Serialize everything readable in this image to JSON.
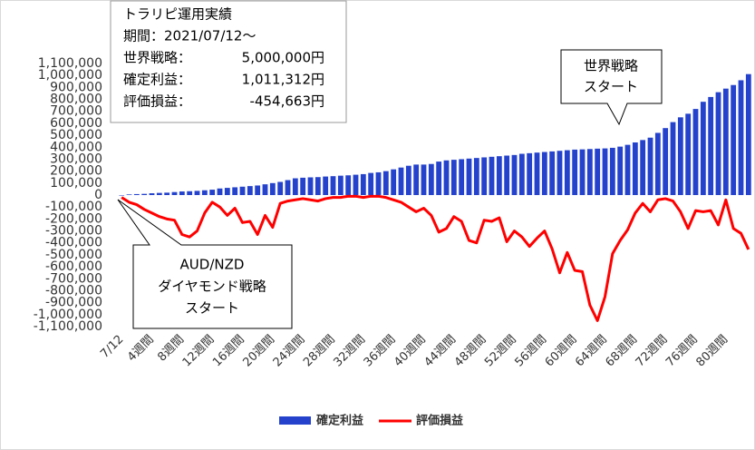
{
  "chart_data": {
    "type": "bar_line",
    "categories": [
      "7/12",
      null,
      null,
      null,
      "4週間",
      null,
      null,
      null,
      "8週間",
      null,
      null,
      null,
      "12週間",
      null,
      null,
      null,
      "16週間",
      null,
      null,
      null,
      "20週間",
      null,
      null,
      null,
      "24週間",
      null,
      null,
      null,
      "28週間",
      null,
      null,
      null,
      "32週間",
      null,
      null,
      null,
      "36週間",
      null,
      null,
      null,
      "40週間",
      null,
      null,
      null,
      "44週間",
      null,
      null,
      null,
      "48週間",
      null,
      null,
      null,
      "52週間",
      null,
      null,
      null,
      "56週間",
      null,
      null,
      null,
      "60週間",
      null,
      null,
      null,
      "64週間",
      null,
      null,
      null,
      "68週間",
      null,
      null,
      null,
      "72週間",
      null,
      null,
      null,
      "76週間",
      null,
      null,
      null,
      "80週間",
      null,
      null,
      null
    ],
    "series": [
      {
        "name": "確定利益",
        "type": "bar",
        "color": "#2442cc",
        "values": [
          0,
          5000,
          8000,
          10000,
          15000,
          18000,
          20000,
          25000,
          30000,
          32000,
          35000,
          40000,
          45000,
          55000,
          60000,
          65000,
          70000,
          75000,
          80000,
          90000,
          100000,
          110000,
          125000,
          140000,
          145000,
          148000,
          150000,
          155000,
          158000,
          162000,
          165000,
          170000,
          175000,
          185000,
          190000,
          200000,
          215000,
          230000,
          245000,
          255000,
          255000,
          260000,
          280000,
          290000,
          295000,
          300000,
          305000,
          310000,
          315000,
          320000,
          325000,
          330000,
          335000,
          345000,
          350000,
          355000,
          360000,
          365000,
          370000,
          375000,
          380000,
          382000,
          385000,
          388000,
          390000,
          395000,
          405000,
          420000,
          440000,
          460000,
          480000,
          520000,
          560000,
          610000,
          650000,
          680000,
          720000,
          780000,
          820000,
          860000,
          890000,
          920000,
          960000,
          1011312
        ]
      },
      {
        "name": "評価損益",
        "type": "line",
        "color": "#ff0000",
        "values": [
          -20000,
          -60000,
          -80000,
          -120000,
          -150000,
          -180000,
          -200000,
          -210000,
          -330000,
          -350000,
          -300000,
          -150000,
          -60000,
          -100000,
          -170000,
          -110000,
          -230000,
          -220000,
          -330000,
          -170000,
          -270000,
          -70000,
          -50000,
          -40000,
          -30000,
          -40000,
          -50000,
          -30000,
          -20000,
          -20000,
          -10000,
          -10000,
          -20000,
          -10000,
          -10000,
          -20000,
          -40000,
          -60000,
          -100000,
          -140000,
          -110000,
          -170000,
          -310000,
          -280000,
          -180000,
          -220000,
          -380000,
          -400000,
          -210000,
          -220000,
          -190000,
          -390000,
          -300000,
          -350000,
          -430000,
          -360000,
          -300000,
          -450000,
          -650000,
          -480000,
          -630000,
          -640000,
          -920000,
          -1050000,
          -850000,
          -490000,
          -380000,
          -290000,
          -150000,
          -70000,
          -140000,
          -40000,
          -30000,
          -50000,
          -140000,
          -280000,
          -130000,
          -140000,
          -130000,
          -250000,
          -40000,
          -280000,
          -320000,
          -454663
        ]
      }
    ],
    "ylim": [
      -1100000,
      1100000
    ],
    "yticks": [
      {
        "value": -1100000,
        "label": "-1,100,000"
      },
      {
        "value": -1000000,
        "label": "-1,000,000"
      },
      {
        "value": -900000,
        "label": "-900,000"
      },
      {
        "value": -800000,
        "label": "-800,000"
      },
      {
        "value": -700000,
        "label": "-700,000"
      },
      {
        "value": -600000,
        "label": "-600,000"
      },
      {
        "value": -500000,
        "label": "-500,000"
      },
      {
        "value": -400000,
        "label": "-400,000"
      },
      {
        "value": -300000,
        "label": "-300,000"
      },
      {
        "value": -200000,
        "label": "-200,000"
      },
      {
        "value": -100000,
        "label": "-100,000"
      },
      0,
      {
        "value": 100000,
        "label": "100,000"
      },
      {
        "value": 200000,
        "label": "200,000"
      },
      {
        "value": 300000,
        "label": "300,000"
      },
      {
        "value": 400000,
        "label": "400,000"
      },
      {
        "value": 500000,
        "label": "500,000"
      },
      {
        "value": 600000,
        "label": "600,000"
      },
      {
        "value": 700000,
        "label": "700,000"
      },
      {
        "value": 800000,
        "label": "800,000"
      },
      {
        "value": 900000,
        "label": "900,000"
      },
      {
        "value": 1000000,
        "label": "1,000,000"
      },
      {
        "value": 1100000,
        "label": "1,100,000"
      }
    ],
    "legend": "bottom",
    "info_box": {
      "title": "トラリピ運用実績",
      "period": "期間：2021/07/12～",
      "rows": [
        [
          "世界戦略：",
          "5,000,000円"
        ],
        [
          "確定利益：",
          "1,011,312円"
        ],
        [
          "評価損益：",
          "-454,663円"
        ]
      ]
    },
    "callouts": [
      [
        "世界戦略",
        "スタート"
      ],
      [
        "AUD/NZD",
        "ダイヤモンド戦略",
        "スタート"
      ]
    ]
  }
}
